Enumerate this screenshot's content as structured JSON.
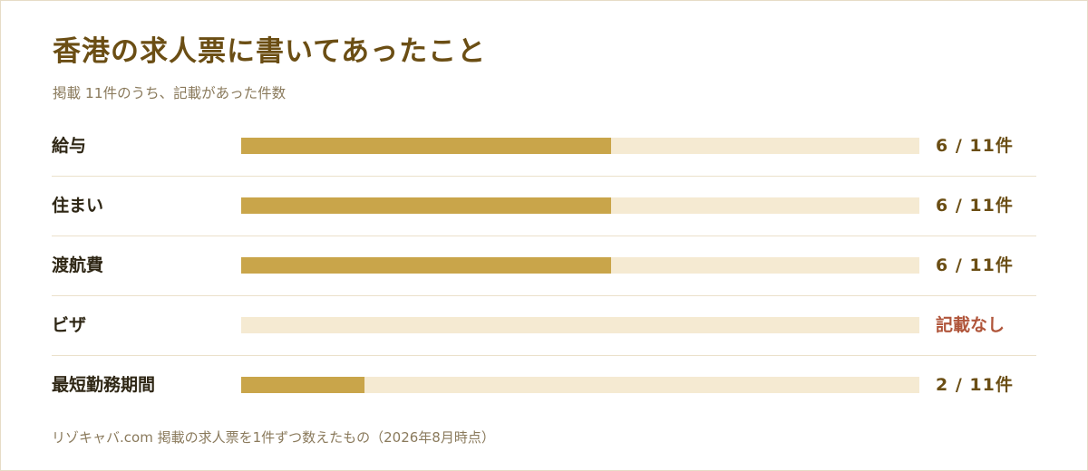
{
  "header": {
    "title": "香港の求人票に書いてあったこと",
    "subtitle": "掲載 11件のうち、記載があった件数"
  },
  "footer": {
    "source": "リゾキャバ.com 掲載の求人票を1件ずつ数えたもの（2026年8月時点）"
  },
  "colors": {
    "bar_fill": "#c9a54a",
    "bar_track": "#f5ead2",
    "title": "#6b4e14",
    "none_value": "#b0553a"
  },
  "chart_data": {
    "type": "bar",
    "orientation": "horizontal",
    "total": 11,
    "categories": [
      "給与",
      "住まい",
      "渡航費",
      "ビザ",
      "最短勤務期間"
    ],
    "values": [
      6,
      6,
      6,
      0,
      2
    ],
    "value_labels": [
      "6 / 11件",
      "6 / 11件",
      "6 / 11件",
      "記載なし",
      "2 / 11件"
    ],
    "xlim": [
      0,
      11
    ],
    "grid": false
  }
}
